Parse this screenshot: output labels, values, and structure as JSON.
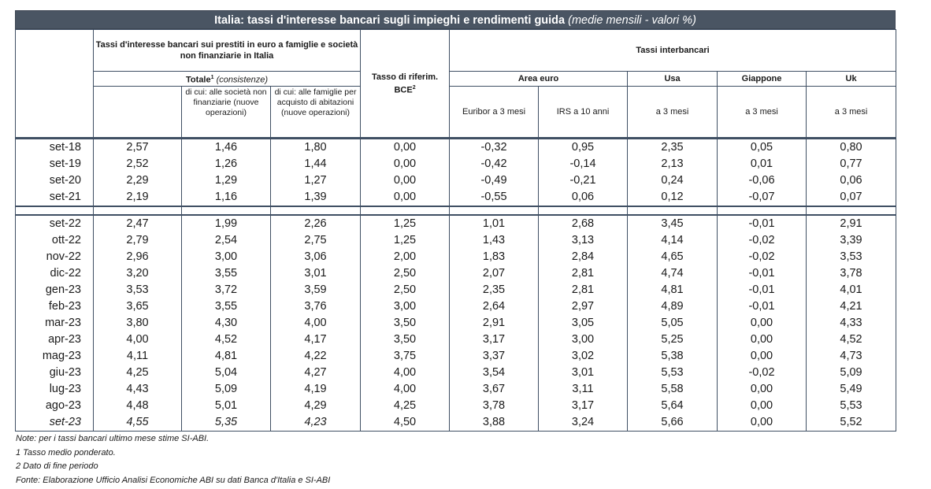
{
  "title": {
    "main": "Italia: tassi d'interesse bancari sugli impieghi e rendimenti guida",
    "sub": "(medie mensili - valori %)"
  },
  "header": {
    "group_bank": "Tassi d'interesse bancari sui prestiti in euro a famiglie e società non finanziarie in Italia",
    "totale_label": "Totale",
    "totale_sup": "1",
    "totale_sub": "(consistenze)",
    "col_societa": "di cui: alle società non finanziarie (nuove operazioni)",
    "col_famiglie": "di cui: alle famiglie per acquisto di abitazioni (nuove operazioni)",
    "col_bce": "Tasso di riferim. BCE",
    "col_bce_sup": "2",
    "group_interbank": "Tassi interbancari",
    "area_euro": "Area euro",
    "usa": "Usa",
    "giappone": "Giappone",
    "uk": "Uk",
    "euribor": "Euribor a 3 mesi",
    "irs": "IRS a 10 anni",
    "usa_sub": "a 3 mesi",
    "giappone_sub": "a 3 mesi",
    "uk_sub": "a 3 mesi"
  },
  "rows_top": [
    [
      "set-18",
      "2,57",
      "1,46",
      "1,80",
      "0,00",
      "-0,32",
      "0,95",
      "2,35",
      "0,05",
      "0,80"
    ],
    [
      "set-19",
      "2,52",
      "1,26",
      "1,44",
      "0,00",
      "-0,42",
      "-0,14",
      "2,13",
      "0,01",
      "0,77"
    ],
    [
      "set-20",
      "2,29",
      "1,29",
      "1,27",
      "0,00",
      "-0,49",
      "-0,21",
      "0,24",
      "-0,06",
      "0,06"
    ],
    [
      "set-21",
      "2,19",
      "1,16",
      "1,39",
      "0,00",
      "-0,55",
      "0,06",
      "0,12",
      "-0,07",
      "0,07"
    ]
  ],
  "rows_bottom": [
    [
      "set-22",
      "2,47",
      "1,99",
      "2,26",
      "1,25",
      "1,01",
      "2,68",
      "3,45",
      "-0,01",
      "2,91"
    ],
    [
      "ott-22",
      "2,79",
      "2,54",
      "2,75",
      "1,25",
      "1,43",
      "3,13",
      "4,14",
      "-0,02",
      "3,39"
    ],
    [
      "nov-22",
      "2,96",
      "3,00",
      "3,06",
      "2,00",
      "1,83",
      "2,84",
      "4,65",
      "-0,02",
      "3,53"
    ],
    [
      "dic-22",
      "3,20",
      "3,55",
      "3,01",
      "2,50",
      "2,07",
      "2,81",
      "4,74",
      "-0,01",
      "3,78"
    ],
    [
      "gen-23",
      "3,53",
      "3,72",
      "3,59",
      "2,50",
      "2,35",
      "2,81",
      "4,81",
      "-0,01",
      "4,01"
    ],
    [
      "feb-23",
      "3,65",
      "3,55",
      "3,76",
      "3,00",
      "2,64",
      "2,97",
      "4,89",
      "-0,01",
      "4,21"
    ],
    [
      "mar-23",
      "3,80",
      "4,30",
      "4,00",
      "3,50",
      "2,91",
      "3,05",
      "5,05",
      "0,00",
      "4,33"
    ],
    [
      "apr-23",
      "4,00",
      "4,52",
      "4,17",
      "3,50",
      "3,17",
      "3,00",
      "5,25",
      "0,00",
      "4,52"
    ],
    [
      "mag-23",
      "4,11",
      "4,81",
      "4,22",
      "3,75",
      "3,37",
      "3,02",
      "5,38",
      "0,00",
      "4,73"
    ],
    [
      "giu-23",
      "4,25",
      "5,04",
      "4,27",
      "4,00",
      "3,54",
      "3,01",
      "5,53",
      "-0,02",
      "5,09"
    ],
    [
      "lug-23",
      "4,43",
      "5,09",
      "4,19",
      "4,00",
      "3,67",
      "3,11",
      "5,58",
      "0,00",
      "5,49"
    ],
    [
      "ago-23",
      "4,48",
      "5,01",
      "4,29",
      "4,25",
      "3,78",
      "3,17",
      "5,64",
      "0,00",
      "5,53"
    ],
    [
      "set-23",
      "4,55",
      "5,35",
      "4,23",
      "4,50",
      "3,88",
      "3,24",
      "5,66",
      "0,00",
      "5,52"
    ]
  ],
  "notes": [
    "Note: per i tassi bancari ultimo mese stime SI-ABI.",
    "1 Tasso medio ponderato.",
    "2 Dato di fine periodo",
    "Fonte: Elaborazione Ufficio Analisi Economiche ABI su dati Banca d'Italia e SI-ABI"
  ],
  "colors": {
    "title_bg": "#4a5563",
    "border": "#3f4f63"
  }
}
